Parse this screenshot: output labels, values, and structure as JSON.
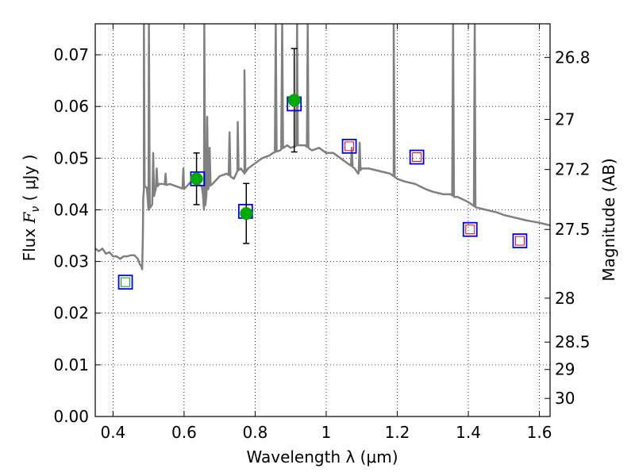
{
  "chart_data": {
    "type": "scatter",
    "xlabel": "Wavelength  λ (μm)",
    "ylabel_parts": {
      "prefix": "Flux  ",
      "symbol": "F",
      "subscript": "ν",
      "suffix": "  ( μJy )"
    },
    "y2label": "Magnitude (AB)",
    "xlim": [
      0.35,
      1.63
    ],
    "ylim": [
      0.0,
      0.076
    ],
    "grid": true,
    "grid_style": "dotted",
    "x_ticks": [
      {
        "value": 0.4,
        "label": "0.4"
      },
      {
        "value": 0.6,
        "label": "0.6"
      },
      {
        "value": 0.8,
        "label": "0.8"
      },
      {
        "value": 1.0,
        "label": "1"
      },
      {
        "value": 1.2,
        "label": "1.2"
      },
      {
        "value": 1.4,
        "label": "1.4"
      },
      {
        "value": 1.6,
        "label": "1.6"
      }
    ],
    "y_ticks": [
      {
        "value": 0.0,
        "label": "0.00"
      },
      {
        "value": 0.01,
        "label": "0.01"
      },
      {
        "value": 0.02,
        "label": "0.02"
      },
      {
        "value": 0.03,
        "label": "0.03"
      },
      {
        "value": 0.04,
        "label": "0.04"
      },
      {
        "value": 0.05,
        "label": "0.05"
      },
      {
        "value": 0.06,
        "label": "0.06"
      },
      {
        "value": 0.07,
        "label": "0.07"
      }
    ],
    "y2_ticks": [
      {
        "flux": 0.0695,
        "label": "26.8"
      },
      {
        "flux": 0.0575,
        "label": "27"
      },
      {
        "flux": 0.0478,
        "label": "27.2"
      },
      {
        "flux": 0.0362,
        "label": "27.5"
      },
      {
        "flux": 0.0229,
        "label": "28"
      },
      {
        "flux": 0.0144,
        "label": "28.5"
      },
      {
        "flux": 0.0091,
        "label": "29"
      },
      {
        "flux": 0.0035,
        "label": "30"
      }
    ],
    "series": [
      {
        "kind": "sed_model",
        "color": "#808080",
        "x": [
          0.35,
          0.36,
          0.37,
          0.38,
          0.39,
          0.4,
          0.41,
          0.42,
          0.43,
          0.44,
          0.45,
          0.46,
          0.47,
          0.475,
          0.48,
          0.482,
          0.484,
          0.485,
          0.487,
          0.489,
          0.49,
          0.495,
          0.5,
          0.51,
          0.52,
          0.53,
          0.54,
          0.55,
          0.56,
          0.58,
          0.6,
          0.62,
          0.64,
          0.65,
          0.653,
          0.656,
          0.66,
          0.663,
          0.67,
          0.68,
          0.7,
          0.72,
          0.74,
          0.75,
          0.76,
          0.77,
          0.78,
          0.8,
          0.82,
          0.84,
          0.85,
          0.87,
          0.89,
          0.9,
          0.92,
          0.94,
          0.95,
          0.96,
          0.98,
          1.0,
          1.02,
          1.04,
          1.06,
          1.08,
          1.09,
          1.1,
          1.12,
          1.15,
          1.18,
          1.19,
          1.2,
          1.22,
          1.25,
          1.28,
          1.3,
          1.33,
          1.35,
          1.36,
          1.37,
          1.4,
          1.42,
          1.45,
          1.48,
          1.5,
          1.53,
          1.56,
          1.6,
          1.63
        ],
        "y": [
          0.0325,
          0.032,
          0.0325,
          0.0315,
          0.0318,
          0.031,
          0.031,
          0.0305,
          0.031,
          0.031,
          0.0312,
          0.0312,
          0.0305,
          0.0295,
          0.029,
          0.0285,
          0.035,
          0.042,
          0.044,
          0.045,
          0.0445,
          0.0443,
          0.04,
          0.041,
          0.044,
          0.045,
          0.045,
          0.0448,
          0.045,
          0.0445,
          0.044,
          0.0455,
          0.045,
          0.0445,
          0.043,
          0.04,
          0.041,
          0.043,
          0.0445,
          0.045,
          0.0465,
          0.047,
          0.046,
          0.0475,
          0.048,
          0.047,
          0.048,
          0.049,
          0.05,
          0.0505,
          0.051,
          0.0515,
          0.0525,
          0.052,
          0.0525,
          0.0525,
          0.052,
          0.0515,
          0.052,
          0.051,
          0.051,
          0.05,
          0.049,
          0.048,
          0.047,
          0.048,
          0.048,
          0.0475,
          0.047,
          0.0465,
          0.046,
          0.0455,
          0.045,
          0.044,
          0.0435,
          0.043,
          0.043,
          0.0425,
          0.0425,
          0.0415,
          0.0405,
          0.04,
          0.0395,
          0.039,
          0.0385,
          0.038,
          0.0375,
          0.037
        ],
        "spikes": [
          {
            "x": 0.487,
            "peak": 0.076
          },
          {
            "x": 0.501,
            "peak": 0.076
          },
          {
            "x": 0.513,
            "peak": 0.051
          },
          {
            "x": 0.523,
            "peak": 0.048
          },
          {
            "x": 0.548,
            "peak": 0.047
          },
          {
            "x": 0.598,
            "peak": 0.048
          },
          {
            "x": 0.657,
            "peak": 0.076
          },
          {
            "x": 0.665,
            "peak": 0.058
          },
          {
            "x": 0.672,
            "peak": 0.052
          },
          {
            "x": 0.728,
            "peak": 0.055
          },
          {
            "x": 0.751,
            "peak": 0.057
          },
          {
            "x": 0.77,
            "peak": 0.067
          },
          {
            "x": 0.858,
            "peak": 0.076
          },
          {
            "x": 0.876,
            "peak": 0.076
          },
          {
            "x": 0.918,
            "peak": 0.076
          },
          {
            "x": 0.948,
            "peak": 0.076
          },
          {
            "x": 1.072,
            "peak": 0.052
          },
          {
            "x": 1.094,
            "peak": 0.053
          },
          {
            "x": 1.19,
            "peak": 0.076
          },
          {
            "x": 1.357,
            "peak": 0.076
          },
          {
            "x": 1.418,
            "peak": 0.076
          }
        ]
      },
      {
        "kind": "model_photometry_blue_squares",
        "color": "#0000ff",
        "x": [
          0.435,
          0.638,
          0.773,
          0.91,
          1.065,
          1.255,
          1.405,
          1.545
        ],
        "y": [
          0.026,
          0.046,
          0.0397,
          0.0605,
          0.0523,
          0.0502,
          0.0362,
          0.034
        ]
      },
      {
        "kind": "inner_squares",
        "x": [
          0.435,
          1.065,
          1.255,
          1.405,
          1.545
        ],
        "y": [
          0.026,
          0.0523,
          0.0502,
          0.0362,
          0.034
        ],
        "colors": [
          "#00aa00",
          "#ff0000",
          "#ff0000",
          "#ff0000",
          "#ff0000"
        ]
      },
      {
        "kind": "observed_points",
        "color": "#00aa00",
        "x": [
          0.635,
          0.775,
          0.91
        ],
        "y": [
          0.046,
          0.0393,
          0.0612
        ],
        "err": [
          0.005,
          0.0058,
          0.01
        ]
      }
    ]
  }
}
